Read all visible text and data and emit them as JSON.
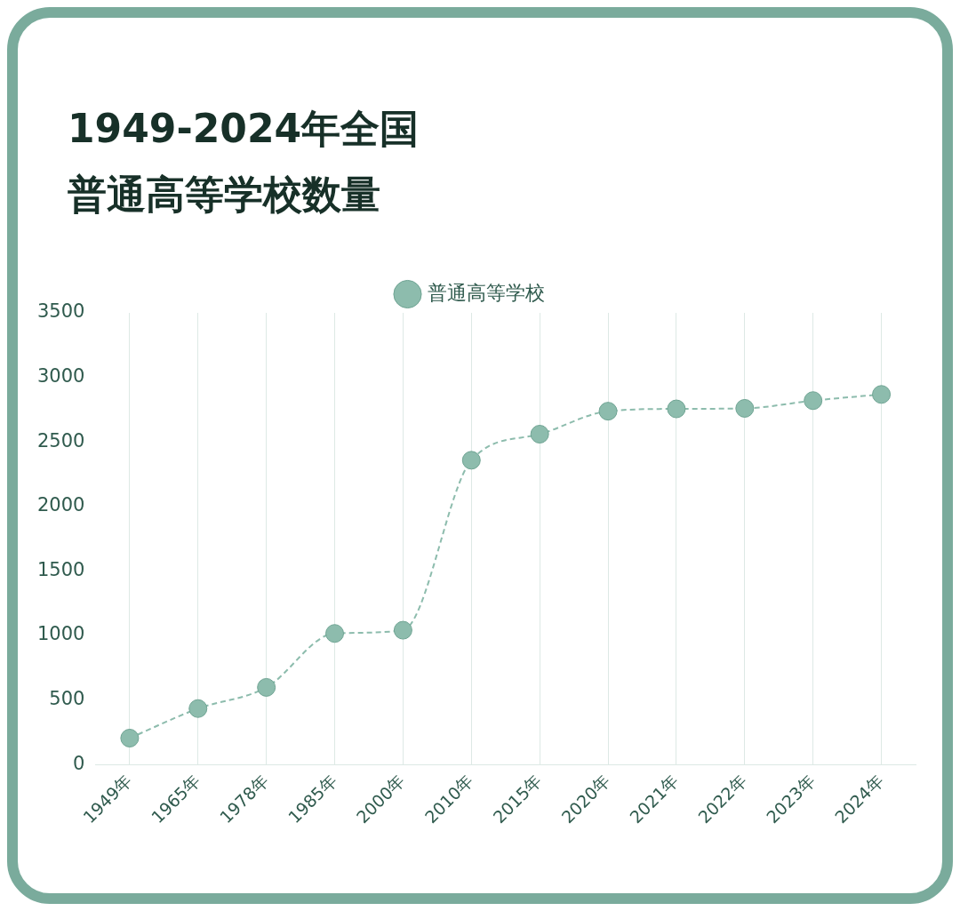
{
  "chart_data": {
    "type": "line",
    "title": "1949-2024年全国普通高等学校数量",
    "categories": [
      "1949年",
      "1965年",
      "1978年",
      "1985年",
      "2000年",
      "2010年",
      "2015年",
      "2020年",
      "2021年",
      "2022年",
      "2023年",
      "2024年"
    ],
    "series": [
      {
        "name": "普通高等学校",
        "color": "#8dbcad",
        "values": [
          205,
          434,
          598,
          1016,
          1041,
          2358,
          2560,
          2738,
          2756,
          2760,
          2820,
          2868
        ]
      }
    ],
    "ylim": [
      0,
      3500
    ],
    "yticks": [
      0,
      500,
      1000,
      1500,
      2000,
      2500,
      3000,
      3500
    ],
    "grid": "x",
    "legend": "top",
    "marker": "circle",
    "line_style": "dashed"
  }
}
